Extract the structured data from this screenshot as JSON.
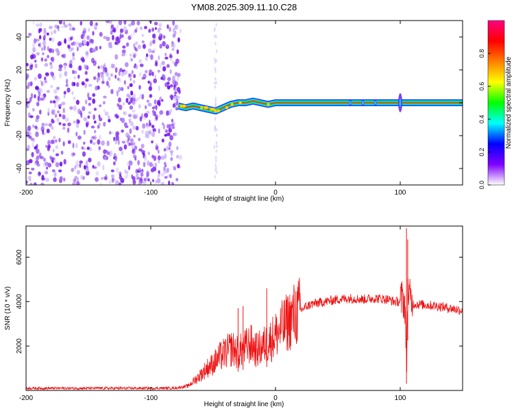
{
  "title": "YM08.2025.309.11.10.C28",
  "chart_data": [
    {
      "type": "heatmap",
      "title": "YM08.2025.309.11.10.C28",
      "xlabel": "Height of straight line (km)",
      "ylabel": "Frequency (Hz)",
      "xlim": [
        -200,
        150
      ],
      "ylim": [
        -50,
        50
      ],
      "x_ticks": [
        "-200",
        "-100",
        "0",
        "100"
      ],
      "x_tick_values": [
        -200,
        -100,
        0,
        100
      ],
      "y_ticks": [
        "-40",
        "-20",
        "0",
        "20",
        "40"
      ],
      "y_tick_values": [
        -40,
        -20,
        0,
        20,
        40
      ],
      "noise_region_x": [
        -200,
        -76
      ],
      "signal_track": {
        "x": [
          -78,
          -72,
          -66,
          -60,
          -54,
          -48,
          -42,
          -36,
          -30,
          -24,
          -18,
          -12,
          -6,
          0,
          150
        ],
        "freq": [
          -2,
          -3,
          -2,
          -3,
          -4,
          -5,
          -3,
          -1,
          0,
          0,
          1,
          0,
          -1,
          0,
          0
        ]
      },
      "spikes_x": [
        60,
        70,
        80,
        100
      ],
      "colorbar": {
        "label": "Normalized spectral amplitude",
        "range": [
          0,
          1
        ],
        "ticks": [
          "0.0",
          "0.2",
          "0.4",
          "0.6",
          "0.8"
        ],
        "tick_values": [
          0.0,
          0.2,
          0.4,
          0.6,
          0.8
        ],
        "colors": [
          "#ffffff",
          "#7f00ff",
          "#0000ff",
          "#00ffff",
          "#00ff00",
          "#ffff00",
          "#ff7f00",
          "#ff0000",
          "#ff0080"
        ]
      }
    },
    {
      "type": "line",
      "title": "",
      "xlabel": "Height of straight line (km)",
      "ylabel": "SNR (10 * v/v)",
      "xlim": [
        -200,
        150
      ],
      "ylim": [
        0,
        7400
      ],
      "x_ticks": [
        "-200",
        "-100",
        "0",
        "100"
      ],
      "x_tick_values": [
        -200,
        -100,
        0,
        100
      ],
      "y_ticks": [
        "2000",
        "4000",
        "6000"
      ],
      "y_tick_values": [
        2000,
        4000,
        6000
      ],
      "color": "#ee1111",
      "series": [
        {
          "name": "SNR",
          "x": [
            -200,
            -150,
            -100,
            -80,
            -70,
            -65,
            -60,
            -55,
            -50,
            -45,
            -40,
            -35,
            -30,
            -25,
            -20,
            -15,
            -10,
            -5,
            0,
            5,
            10,
            15,
            20,
            25,
            30,
            40,
            50,
            60,
            70,
            80,
            90,
            95,
            100,
            102,
            104,
            105,
            106,
            108,
            110,
            120,
            130,
            140,
            150
          ],
          "y": [
            100,
            100,
            100,
            110,
            200,
            450,
            700,
            1000,
            1200,
            1500,
            1700,
            1900,
            1700,
            1900,
            2100,
            1800,
            2000,
            2200,
            2500,
            2800,
            3100,
            3400,
            3600,
            3800,
            3900,
            4000,
            4100,
            4150,
            4100,
            4150,
            4100,
            4000,
            4000,
            4200,
            3800,
            600,
            4500,
            4100,
            3900,
            3850,
            3800,
            3700,
            3600
          ]
        }
      ],
      "spikes": [
        {
          "x": -30,
          "y": 3700
        },
        {
          "x": -26,
          "y": 3800
        },
        {
          "x": -7,
          "y": 4600
        },
        {
          "x": 105,
          "y": 7300
        },
        {
          "x": 106,
          "y": 6800
        }
      ]
    }
  ]
}
